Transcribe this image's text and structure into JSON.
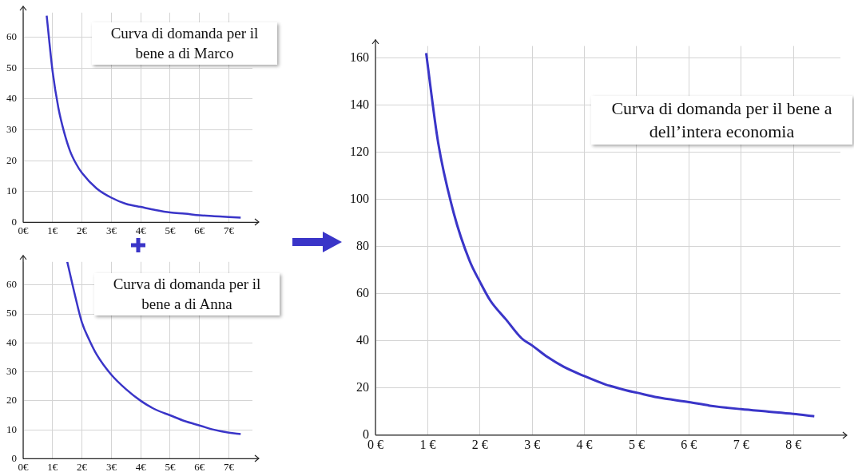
{
  "chart_data": [
    {
      "type": "line",
      "title": "Curva di domanda per il bene a di Marco",
      "x": [
        0.8,
        1,
        1.2,
        1.4,
        1.6,
        1.8,
        2,
        2.5,
        3,
        3.5,
        4,
        4.5,
        5,
        5.5,
        6,
        6.5,
        7,
        7.4
      ],
      "series": [
        {
          "color": "#3a35c8",
          "values": [
            67,
            49,
            37,
            29,
            23,
            19,
            16,
            11,
            8,
            6,
            5,
            4,
            3.2,
            2.8,
            2.3,
            2,
            1.7,
            1.5
          ]
        }
      ],
      "xlim": [
        0,
        7.8
      ],
      "xticks": [
        {
          "value": 0,
          "label": "0€"
        },
        {
          "value": 1,
          "label": "1€"
        },
        {
          "value": 2,
          "label": "2€"
        },
        {
          "value": 3,
          "label": "3€"
        },
        {
          "value": 4,
          "label": "4€"
        },
        {
          "value": 5,
          "label": "5€"
        },
        {
          "value": 6,
          "label": "6€"
        },
        {
          "value": 7,
          "label": "7€"
        }
      ],
      "ylim": [
        0,
        68
      ],
      "yticks": [
        0,
        10,
        20,
        30,
        40,
        50,
        60
      ],
      "grid": true,
      "marker": "none"
    },
    {
      "type": "line",
      "title": "Curva di domanda per il bene a di Anna",
      "x": [
        1.5,
        1.75,
        2,
        2.25,
        2.5,
        3,
        3.5,
        4,
        4.5,
        5,
        5.5,
        6,
        6.5,
        7,
        7.4
      ],
      "series": [
        {
          "color": "#3a35c8",
          "values": [
            68,
            57,
            47,
            41,
            36,
            29,
            24,
            20,
            17,
            15,
            13,
            11.5,
            10,
            9,
            8.5
          ]
        }
      ],
      "xlim": [
        0,
        7.8
      ],
      "xticks": [
        {
          "value": 0,
          "label": "0€"
        },
        {
          "value": 1,
          "label": "1€"
        },
        {
          "value": 2,
          "label": "2€"
        },
        {
          "value": 3,
          "label": "3€"
        },
        {
          "value": 4,
          "label": "4€"
        },
        {
          "value": 5,
          "label": "5€"
        },
        {
          "value": 6,
          "label": "6€"
        },
        {
          "value": 7,
          "label": "7€"
        }
      ],
      "ylim": [
        0,
        68
      ],
      "yticks": [
        0,
        10,
        20,
        30,
        40,
        50,
        60
      ],
      "grid": true,
      "marker": "none"
    },
    {
      "type": "line",
      "title": "Curva di domanda per il bene a dell’intera economia",
      "x": [
        0.97,
        1.2,
        1.5,
        1.8,
        2,
        2.2,
        2.5,
        2.8,
        3,
        3.3,
        3.6,
        4,
        4.4,
        4.8,
        5,
        5.4,
        6,
        6.4,
        7,
        7.5,
        8,
        8.4
      ],
      "series": [
        {
          "color": "#3a35c8",
          "values": [
            162,
            124,
            94,
            74,
            65,
            57,
            49,
            41,
            38,
            33,
            29,
            25,
            21.5,
            19,
            18,
            16,
            14,
            12.5,
            11,
            10,
            9,
            8
          ]
        }
      ],
      "xlim": [
        0,
        8.9
      ],
      "xticks": [
        {
          "value": 0,
          "label": "0 €"
        },
        {
          "value": 1,
          "label": "1 €"
        },
        {
          "value": 2,
          "label": "2 €"
        },
        {
          "value": 3,
          "label": "3 €"
        },
        {
          "value": 4,
          "label": "4 €"
        },
        {
          "value": 5,
          "label": "5 €"
        },
        {
          "value": 6,
          "label": "6 €"
        },
        {
          "value": 7,
          "label": "7 €"
        },
        {
          "value": 8,
          "label": "8 €"
        }
      ],
      "ylim": [
        0,
        165
      ],
      "yticks": [
        0,
        20,
        40,
        60,
        80,
        100,
        120,
        140,
        160
      ],
      "grid": true,
      "marker": "none"
    }
  ]
}
